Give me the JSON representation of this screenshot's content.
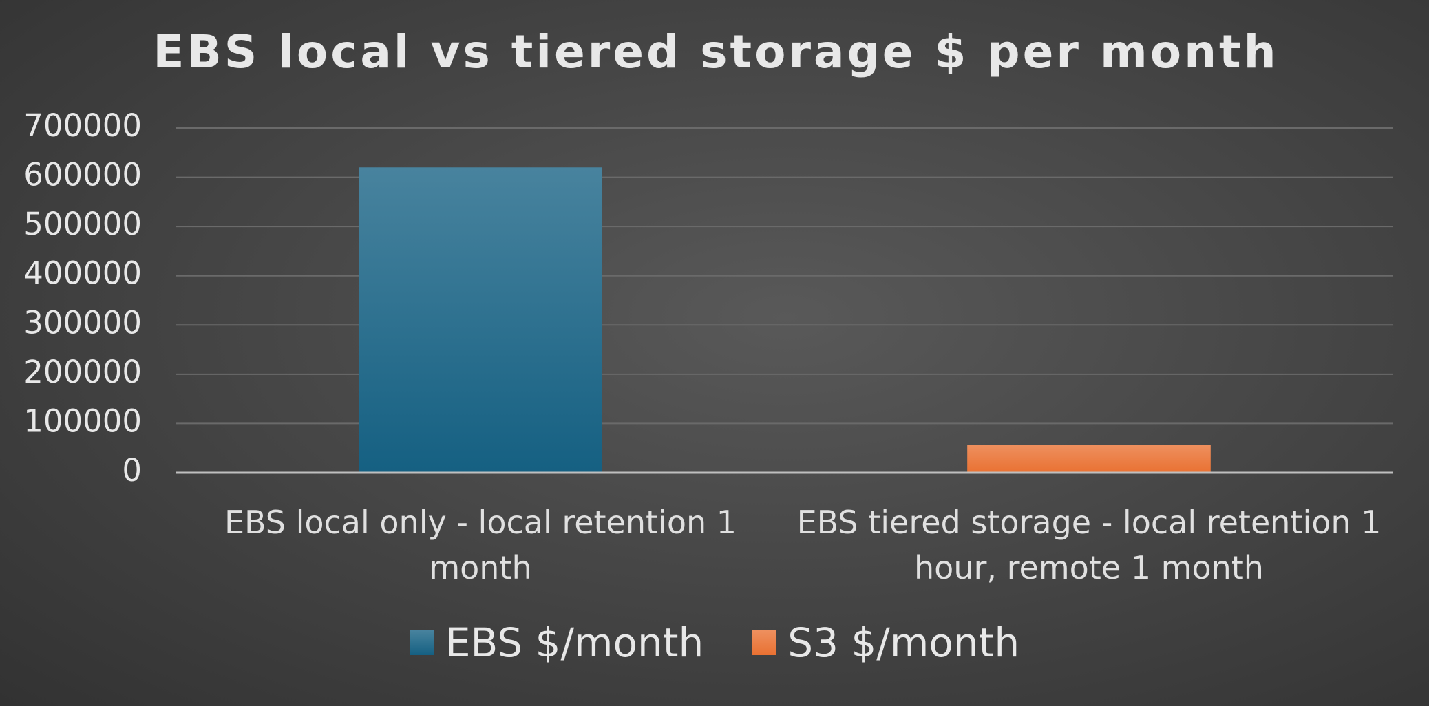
{
  "chart_data": {
    "type": "bar",
    "stacked": true,
    "title": "EBS local vs tiered storage $ per month",
    "categories": [
      "EBS local only - local retention 1 month",
      "EBS tiered storage - local retention 1 hour, remote 1 month"
    ],
    "series": [
      {
        "name": "EBS $/month",
        "color": "#156082",
        "values": [
          620000,
          null
        ]
      },
      {
        "name": "S3 $/month",
        "color": "#e97132",
        "values": [
          null,
          57000
        ]
      }
    ],
    "ylim": [
      0,
      700000
    ],
    "yticks": [
      0,
      100000,
      200000,
      300000,
      400000,
      500000,
      600000,
      700000
    ],
    "grid": true,
    "legend": "bottom"
  }
}
